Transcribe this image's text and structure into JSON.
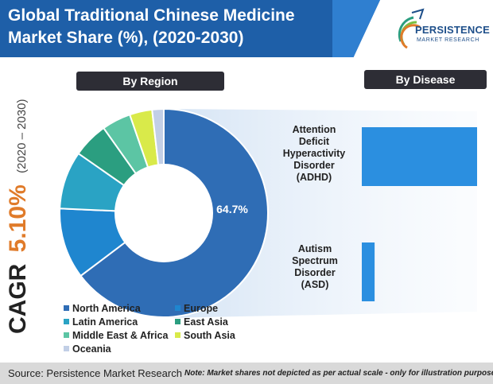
{
  "header": {
    "title_line1": "Global Traditional Chinese Medicine",
    "title_line2": "Market Share (%), (2020-2030)"
  },
  "logo": {
    "name": "PERSISTENCE",
    "subtitle": "MARKET RESEARCH",
    "brand_color": "#1e4f8a"
  },
  "tabs": {
    "region": "By Region",
    "disease": "By Disease"
  },
  "cagr": {
    "label": "CAGR",
    "value": "5.10%",
    "period": "(2020 – 2030)",
    "value_color": "#e07b2a"
  },
  "chart_data": [
    {
      "type": "pie",
      "variant": "donut",
      "slices": [
        {
          "name": "North America",
          "value": 64.7,
          "color": "#2f6db5",
          "data_label": "64.7%"
        },
        {
          "name": "Europe",
          "value": 11,
          "color": "#1f86cf"
        },
        {
          "name": "Latin America",
          "value": 9,
          "color": "#2aa3c4"
        },
        {
          "name": "East Asia",
          "value": 5.5,
          "color": "#2b9e80"
        },
        {
          "name": "Middle East & Africa",
          "value": 4.5,
          "color": "#5cc5a4"
        },
        {
          "name": "South Asia",
          "value": 3.5,
          "color": "#d9ea4a"
        },
        {
          "name": "Oceania",
          "value": 1.8,
          "color": "#c2cfe6"
        }
      ],
      "legend_placement": "bottom"
    },
    {
      "type": "bar",
      "orientation": "horizontal",
      "categories": [
        "Attention Deficit Hyperactivity Disorder (ADHD)",
        "Autism Spectrum Disorder (ASD)"
      ],
      "category_lines": [
        [
          "Attention",
          "Deficit",
          "Hyperactivity",
          "Disorder",
          "(ADHD)"
        ],
        [
          "Autism",
          "Spectrum",
          "Disorder",
          "(ASD)"
        ]
      ],
      "values": [
        90,
        10
      ],
      "color": "#2b8fe0"
    }
  ],
  "footer": {
    "source": "Source: Persistence Market Research",
    "note": "Note: Market shares not depicted as per actual scale - only for illustration purposes"
  }
}
